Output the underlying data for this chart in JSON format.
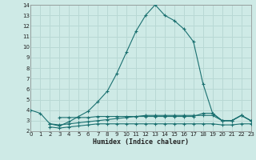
{
  "xlabel": "Humidex (Indice chaleur)",
  "xlim": [
    0,
    23
  ],
  "ylim": [
    2,
    14
  ],
  "yticks": [
    2,
    3,
    4,
    5,
    6,
    7,
    8,
    9,
    10,
    11,
    12,
    13,
    14
  ],
  "xticks": [
    0,
    1,
    2,
    3,
    4,
    5,
    6,
    7,
    8,
    9,
    10,
    11,
    12,
    13,
    14,
    15,
    16,
    17,
    18,
    19,
    20,
    21,
    22,
    23
  ],
  "bg_color": "#ceeae6",
  "grid_color": "#b8d8d4",
  "line_color": "#1a7070",
  "series1": [
    [
      0,
      4.0
    ],
    [
      1,
      3.7
    ],
    [
      2,
      2.7
    ],
    [
      3,
      2.5
    ],
    [
      4,
      2.9
    ],
    [
      5,
      3.4
    ],
    [
      6,
      3.9
    ],
    [
      7,
      4.8
    ],
    [
      8,
      5.8
    ],
    [
      9,
      7.5
    ],
    [
      10,
      9.5
    ],
    [
      11,
      11.5
    ],
    [
      12,
      13.0
    ],
    [
      13,
      14.0
    ],
    [
      14,
      13.0
    ],
    [
      15,
      12.5
    ],
    [
      16,
      11.7
    ],
    [
      17,
      10.5
    ],
    [
      18,
      6.5
    ],
    [
      19,
      3.7
    ],
    [
      20,
      3.0
    ],
    [
      21,
      3.0
    ],
    [
      22,
      3.5
    ],
    [
      23,
      3.0
    ]
  ],
  "series2": [
    [
      2,
      2.7
    ],
    [
      3,
      2.6
    ],
    [
      4,
      2.7
    ],
    [
      5,
      2.8
    ],
    [
      6,
      2.9
    ],
    [
      7,
      3.0
    ],
    [
      8,
      3.1
    ],
    [
      9,
      3.2
    ],
    [
      10,
      3.3
    ],
    [
      11,
      3.4
    ],
    [
      12,
      3.5
    ],
    [
      13,
      3.5
    ],
    [
      14,
      3.5
    ],
    [
      15,
      3.5
    ],
    [
      16,
      3.5
    ],
    [
      17,
      3.5
    ],
    [
      18,
      3.5
    ],
    [
      19,
      3.5
    ],
    [
      20,
      3.0
    ],
    [
      21,
      3.0
    ],
    [
      22,
      3.5
    ],
    [
      23,
      3.0
    ]
  ],
  "series3": [
    [
      2,
      2.4
    ],
    [
      3,
      2.3
    ],
    [
      4,
      2.4
    ],
    [
      5,
      2.5
    ],
    [
      6,
      2.6
    ],
    [
      7,
      2.7
    ],
    [
      8,
      2.7
    ],
    [
      9,
      2.7
    ],
    [
      10,
      2.7
    ],
    [
      11,
      2.7
    ],
    [
      12,
      2.7
    ],
    [
      13,
      2.7
    ],
    [
      14,
      2.7
    ],
    [
      15,
      2.7
    ],
    [
      16,
      2.7
    ],
    [
      17,
      2.7
    ],
    [
      18,
      2.7
    ],
    [
      19,
      2.7
    ],
    [
      20,
      2.6
    ],
    [
      21,
      2.6
    ],
    [
      22,
      2.7
    ],
    [
      23,
      2.7
    ]
  ],
  "series4": [
    [
      3,
      3.3
    ],
    [
      4,
      3.3
    ],
    [
      5,
      3.3
    ],
    [
      6,
      3.3
    ],
    [
      7,
      3.4
    ],
    [
      8,
      3.4
    ],
    [
      9,
      3.4
    ],
    [
      10,
      3.4
    ],
    [
      11,
      3.4
    ],
    [
      12,
      3.4
    ],
    [
      13,
      3.4
    ],
    [
      14,
      3.4
    ],
    [
      15,
      3.4
    ],
    [
      16,
      3.4
    ],
    [
      17,
      3.4
    ],
    [
      18,
      3.7
    ],
    [
      19,
      3.7
    ],
    [
      20,
      3.0
    ],
    [
      21,
      3.0
    ],
    [
      22,
      3.5
    ],
    [
      23,
      3.0
    ]
  ]
}
